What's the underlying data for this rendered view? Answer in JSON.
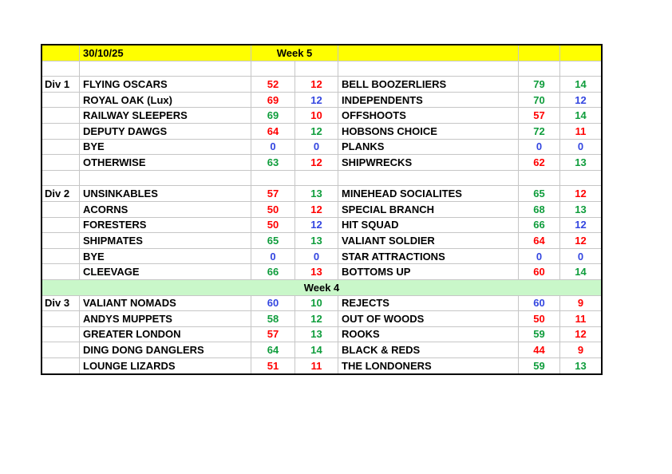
{
  "sheet": {
    "header": {
      "date": "30/10/25",
      "week_label": "Week 5"
    },
    "mid_banner_label": "Week 4",
    "colors": {
      "header_bg": "#ffff00",
      "banner_bg": "#c9f7c9",
      "win": "#0f9d3c",
      "loss": "#ff0000",
      "draw": "#3346e0",
      "grid_line": "#c6c6c6",
      "frame": "#000000",
      "text": "#000000"
    },
    "color_legend": {
      "win": "green",
      "loss": "red",
      "draw": "blue"
    },
    "divisions": [
      {
        "label": "Div 1",
        "gap_above": true,
        "banner_above": null,
        "matches": [
          {
            "home": "FLYING OSCARS",
            "home_score": "52",
            "home_score_state": "loss",
            "home_pts": "12",
            "home_pts_state": "loss",
            "away": "BELL BOOZERLIERS",
            "away_score": "79",
            "away_score_state": "win",
            "away_pts": "14",
            "away_pts_state": "win"
          },
          {
            "home": "ROYAL OAK (Lux)",
            "home_score": "69",
            "home_score_state": "loss",
            "home_pts": "12",
            "home_pts_state": "draw",
            "away": "INDEPENDENTS",
            "away_score": "70",
            "away_score_state": "win",
            "away_pts": "12",
            "away_pts_state": "draw"
          },
          {
            "home": "RAILWAY SLEEPERS",
            "home_score": "69",
            "home_score_state": "win",
            "home_pts": "10",
            "home_pts_state": "loss",
            "away": "OFFSHOOTS",
            "away_score": "57",
            "away_score_state": "loss",
            "away_pts": "14",
            "away_pts_state": "win"
          },
          {
            "home": "DEPUTY DAWGS",
            "home_score": "64",
            "home_score_state": "loss",
            "home_pts": "12",
            "home_pts_state": "win",
            "away": "HOBSONS CHOICE",
            "away_score": "72",
            "away_score_state": "win",
            "away_pts": "11",
            "away_pts_state": "loss"
          },
          {
            "home": "BYE",
            "home_score": "0",
            "home_score_state": "draw",
            "home_pts": "0",
            "home_pts_state": "draw",
            "away": "PLANKS",
            "away_score": "0",
            "away_score_state": "draw",
            "away_pts": "0",
            "away_pts_state": "draw"
          },
          {
            "home": "OTHERWISE",
            "home_score": "63",
            "home_score_state": "win",
            "home_pts": "12",
            "home_pts_state": "loss",
            "away": "SHIPWRECKS",
            "away_score": "62",
            "away_score_state": "loss",
            "away_pts": "13",
            "away_pts_state": "win"
          }
        ]
      },
      {
        "label": "Div 2",
        "gap_above": true,
        "banner_above": null,
        "matches": [
          {
            "home": "UNSINKABLES",
            "home_score": "57",
            "home_score_state": "loss",
            "home_pts": "13",
            "home_pts_state": "win",
            "away": "MINEHEAD SOCIALITES",
            "away_score": "65",
            "away_score_state": "win",
            "away_pts": "12",
            "away_pts_state": "loss"
          },
          {
            "home": "ACORNS",
            "home_score": "50",
            "home_score_state": "loss",
            "home_pts": "12",
            "home_pts_state": "loss",
            "away": "SPECIAL BRANCH",
            "away_score": "68",
            "away_score_state": "win",
            "away_pts": "13",
            "away_pts_state": "win"
          },
          {
            "home": "FORESTERS",
            "home_score": "50",
            "home_score_state": "loss",
            "home_pts": "12",
            "home_pts_state": "draw",
            "away": "HIT SQUAD",
            "away_score": "66",
            "away_score_state": "win",
            "away_pts": "12",
            "away_pts_state": "draw"
          },
          {
            "home": "SHIPMATES",
            "home_score": "65",
            "home_score_state": "win",
            "home_pts": "13",
            "home_pts_state": "win",
            "away": "VALIANT SOLDIER",
            "away_score": "64",
            "away_score_state": "loss",
            "away_pts": "12",
            "away_pts_state": "loss"
          },
          {
            "home": "BYE",
            "home_score": "0",
            "home_score_state": "draw",
            "home_pts": "0",
            "home_pts_state": "draw",
            "away": "STAR ATTRACTIONS",
            "away_score": "0",
            "away_score_state": "draw",
            "away_pts": "0",
            "away_pts_state": "draw"
          },
          {
            "home": "CLEEVAGE",
            "home_score": "66",
            "home_score_state": "win",
            "home_pts": "13",
            "home_pts_state": "loss",
            "away": "BOTTOMS UP",
            "away_score": "60",
            "away_score_state": "loss",
            "away_pts": "14",
            "away_pts_state": "win"
          }
        ]
      },
      {
        "label": "Div 3",
        "gap_above": false,
        "banner_above": "Week 4",
        "matches": [
          {
            "home": "VALIANT NOMADS",
            "home_score": "60",
            "home_score_state": "draw",
            "home_pts": "10",
            "home_pts_state": "win",
            "away": "REJECTS",
            "away_score": "60",
            "away_score_state": "draw",
            "away_pts": "9",
            "away_pts_state": "loss"
          },
          {
            "home": "ANDYS MUPPETS",
            "home_score": "58",
            "home_score_state": "win",
            "home_pts": "12",
            "home_pts_state": "win",
            "away": "OUT OF WOODS",
            "away_score": "50",
            "away_score_state": "loss",
            "away_pts": "11",
            "away_pts_state": "loss"
          },
          {
            "home": "GREATER LONDON",
            "home_score": "57",
            "home_score_state": "loss",
            "home_pts": "13",
            "home_pts_state": "win",
            "away": "ROOKS",
            "away_score": "59",
            "away_score_state": "win",
            "away_pts": "12",
            "away_pts_state": "loss"
          },
          {
            "home": "DING DONG DANGLERS",
            "home_score": "64",
            "home_score_state": "win",
            "home_pts": "14",
            "home_pts_state": "win",
            "away": "BLACK & REDS",
            "away_score": "44",
            "away_score_state": "loss",
            "away_pts": "9",
            "away_pts_state": "loss"
          },
          {
            "home": "LOUNGE LIZARDS",
            "home_score": "51",
            "home_score_state": "loss",
            "home_pts": "11",
            "home_pts_state": "loss",
            "away": "THE LONDONERS",
            "away_score": "59",
            "away_score_state": "win",
            "away_pts": "13",
            "away_pts_state": "win"
          }
        ]
      }
    ]
  }
}
